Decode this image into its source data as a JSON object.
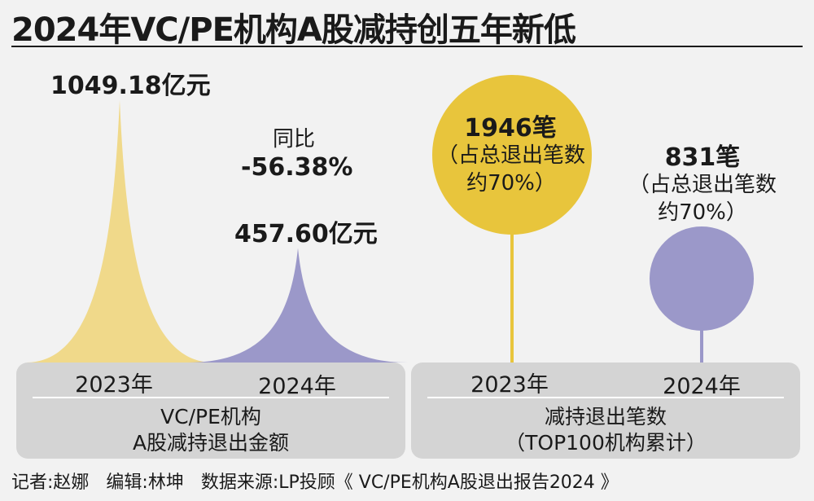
{
  "title": "2024年VC/PE机构A股减持创五年新低",
  "chart_data": [
    {
      "type": "area",
      "title": "",
      "categories": [
        "2023年",
        "2024年"
      ],
      "series": [
        {
          "values": [
            1049.18,
            457.6
          ]
        }
      ],
      "unit": "亿元",
      "value_labels": [
        "1049.18亿元",
        "457.60亿元"
      ],
      "annotation": {
        "line1": "同比",
        "line2": "-56.38%"
      },
      "group_label": [
        "VC/PE机构",
        "A股减持退出金额"
      ],
      "colors": [
        "#f0d98a",
        "#9b98c9"
      ]
    },
    {
      "type": "bubble",
      "title": "",
      "categories": [
        "2023年",
        "2024年"
      ],
      "series": [
        {
          "values": [
            1946,
            831
          ]
        }
      ],
      "unit": "笔",
      "value_labels": [
        "1946笔",
        "831笔"
      ],
      "share_labels": [
        {
          "line1": "（占总退出笔数",
          "line2": "约70%）"
        },
        {
          "line1": "（占总退出笔数",
          "line2": "约70%）"
        }
      ],
      "group_label": [
        "减持退出笔数",
        "（TOP100机构累计）"
      ],
      "colors": [
        "#e8c53c",
        "#9b98c9"
      ]
    }
  ],
  "credits": {
    "reporter": "记者:赵娜",
    "editor": "编辑:林坤",
    "source": "数据来源:LP投顾《 VC/PE机构A股退出报告2024 》"
  }
}
